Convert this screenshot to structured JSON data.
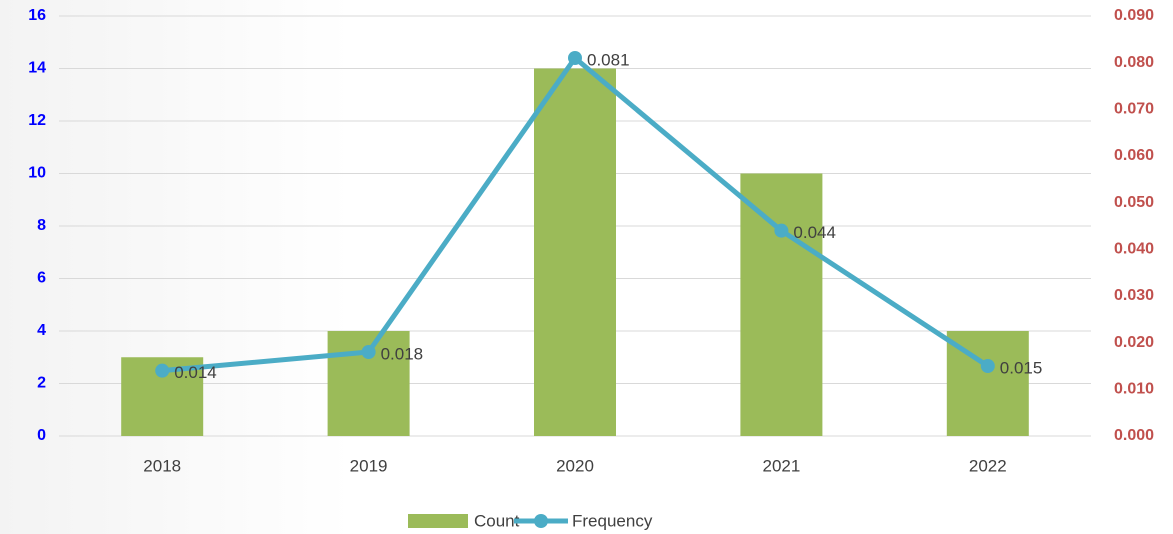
{
  "chart_data": {
    "type": "combo",
    "categories": [
      "2018",
      "2019",
      "2020",
      "2021",
      "2022"
    ],
    "series": [
      {
        "name": "Count",
        "type": "bar",
        "color": "#9bbb59",
        "values": [
          3,
          4,
          14,
          10,
          4
        ]
      },
      {
        "name": "Frequency",
        "type": "line",
        "axis": "y2",
        "color": "#4bacc6",
        "values": [
          0.014,
          0.018,
          0.081,
          0.044,
          0.015
        ]
      }
    ],
    "ylim": [
      0,
      16
    ],
    "yticks": [
      0,
      2,
      4,
      6,
      8,
      10,
      12,
      14,
      16
    ],
    "ytick_color": "#0000ff",
    "y2lim": [
      0,
      0.09
    ],
    "y2ticks": [
      {
        "value": 0,
        "label": "0.000"
      },
      {
        "value": 0.01,
        "label": "0.010"
      },
      {
        "value": 0.02,
        "label": "0.020"
      },
      {
        "value": 0.03,
        "label": "0.030"
      },
      {
        "value": 0.04,
        "label": "0.040"
      },
      {
        "value": 0.05,
        "label": "0.050"
      },
      {
        "value": 0.06,
        "label": "0.060"
      },
      {
        "value": 0.07,
        "label": "0.070"
      },
      {
        "value": 0.08,
        "label": "0.080"
      },
      {
        "value": 0.09,
        "label": "0.090"
      }
    ],
    "y2tick_color": "#c0504d",
    "grid": true,
    "legend": "bottom"
  }
}
